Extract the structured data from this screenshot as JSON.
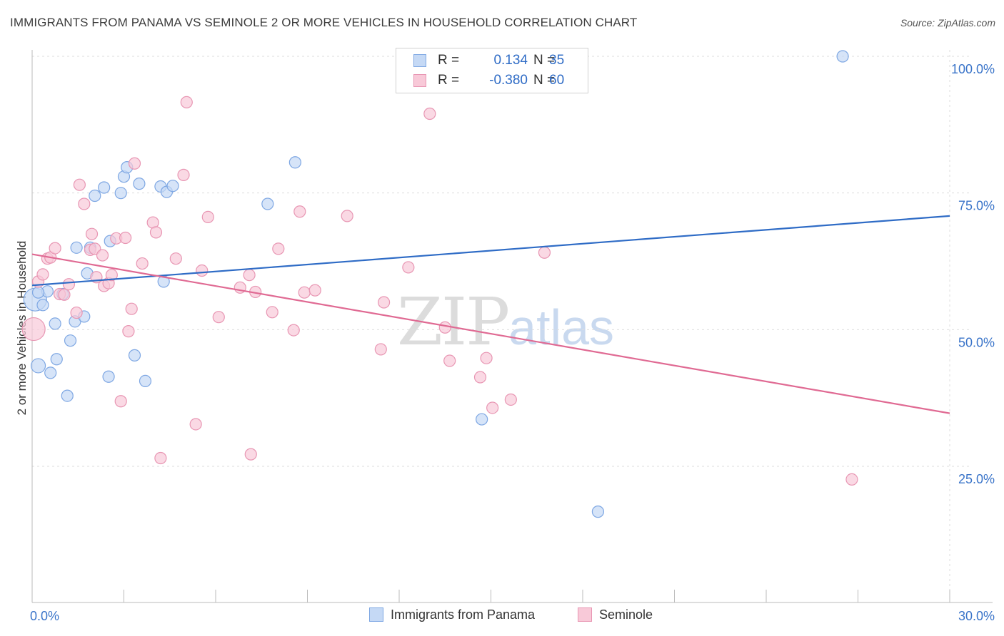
{
  "header": {
    "title": "IMMIGRANTS FROM PANAMA VS SEMINOLE 2 OR MORE VEHICLES IN HOUSEHOLD CORRELATION CHART",
    "source": "Source: ZipAtlas.com"
  },
  "watermark": {
    "zip": "ZIP",
    "atlas": "atlas"
  },
  "legend": {
    "rows": [
      {
        "r_label": "R =",
        "r_value": "0.134",
        "n_label": "N =",
        "n_value": "35",
        "fill": "#c5d9f5",
        "stroke": "#7ea7e3"
      },
      {
        "r_label": "R =",
        "r_value": "-0.380",
        "n_label": "N =",
        "n_value": "60",
        "fill": "#f8c9d8",
        "stroke": "#e896b3"
      }
    ]
  },
  "bottom_legend": {
    "series1": "Immigrants from Panama",
    "series2": "Seminole"
  },
  "chart_data": {
    "type": "scatter",
    "title": "IMMIGRANTS FROM PANAMA VS SEMINOLE 2 OR MORE VEHICLES IN HOUSEHOLD CORRELATION CHART",
    "xlabel": "",
    "ylabel": "2 or more Vehicles in Household",
    "xlim": [
      0,
      30
    ],
    "ylim": [
      0,
      102
    ],
    "x_tick_labels": [
      "0.0%",
      "30.0%"
    ],
    "y_ticks": [
      25,
      50,
      75,
      100
    ],
    "y_tick_labels": [
      "25.0%",
      "50.0%",
      "75.0%",
      "100.0%"
    ],
    "grid": true,
    "colors": {
      "blue": "#2f6cc6",
      "pink": "#e06a93",
      "axis_text": "#3a74c9"
    },
    "series": [
      {
        "name": "Immigrants from Panama",
        "color": "#7ea7e3",
        "fill": "#c5d9f5",
        "trend": {
          "x": [
            0,
            30
          ],
          "y": [
            58.1,
            70.8
          ]
        },
        "points": [
          [
            0.1,
            55.5
          ],
          [
            0.2,
            43.4
          ],
          [
            0.35,
            54.5
          ],
          [
            0.5,
            57.0
          ],
          [
            0.6,
            42.1
          ],
          [
            0.75,
            51.1
          ],
          [
            0.8,
            44.6
          ],
          [
            1.0,
            56.5
          ],
          [
            1.15,
            37.9
          ],
          [
            1.25,
            48.0
          ],
          [
            1.4,
            51.5
          ],
          [
            1.45,
            65.0
          ],
          [
            1.7,
            52.4
          ],
          [
            1.8,
            60.3
          ],
          [
            1.9,
            65.0
          ],
          [
            2.05,
            74.5
          ],
          [
            2.35,
            76.0
          ],
          [
            2.5,
            41.4
          ],
          [
            2.55,
            66.2
          ],
          [
            2.9,
            75.0
          ],
          [
            3.0,
            78.0
          ],
          [
            3.1,
            79.7
          ],
          [
            3.35,
            45.3
          ],
          [
            3.5,
            76.7
          ],
          [
            3.7,
            40.6
          ],
          [
            4.2,
            76.2
          ],
          [
            4.3,
            58.8
          ],
          [
            4.4,
            75.2
          ],
          [
            4.6,
            76.3
          ],
          [
            7.7,
            73.0
          ],
          [
            8.6,
            80.6
          ],
          [
            14.7,
            33.6
          ],
          [
            18.5,
            16.7
          ],
          [
            26.5,
            100.0
          ],
          [
            0.2,
            56.8
          ]
        ],
        "sizes": [
          16,
          10,
          8,
          8,
          8,
          8,
          8,
          8,
          8,
          8,
          8,
          8,
          8,
          8,
          8,
          8,
          8,
          8,
          8,
          8,
          8,
          8,
          8,
          8,
          8,
          8,
          8,
          8,
          8,
          8,
          8,
          8,
          8,
          8,
          8
        ]
      },
      {
        "name": "Seminole",
        "color": "#e896b3",
        "fill": "#f8c9d8",
        "trend": {
          "x": [
            0,
            30
          ],
          "y": [
            63.8,
            34.7
          ]
        },
        "points": [
          [
            0.05,
            50.1
          ],
          [
            0.2,
            58.8
          ],
          [
            0.35,
            60.1
          ],
          [
            0.5,
            63.0
          ],
          [
            0.6,
            63.2
          ],
          [
            0.75,
            64.9
          ],
          [
            0.9,
            56.5
          ],
          [
            1.05,
            56.4
          ],
          [
            1.2,
            58.3
          ],
          [
            1.45,
            53.1
          ],
          [
            1.55,
            76.5
          ],
          [
            1.7,
            73.0
          ],
          [
            1.9,
            64.6
          ],
          [
            1.95,
            67.5
          ],
          [
            2.05,
            64.8
          ],
          [
            2.1,
            59.6
          ],
          [
            2.3,
            63.6
          ],
          [
            2.35,
            58.0
          ],
          [
            2.5,
            58.5
          ],
          [
            2.6,
            60.0
          ],
          [
            2.75,
            66.7
          ],
          [
            2.9,
            36.9
          ],
          [
            3.05,
            66.8
          ],
          [
            3.15,
            49.7
          ],
          [
            3.25,
            53.8
          ],
          [
            3.35,
            80.4
          ],
          [
            3.6,
            62.1
          ],
          [
            3.95,
            69.6
          ],
          [
            4.05,
            67.8
          ],
          [
            4.2,
            26.5
          ],
          [
            4.7,
            63.0
          ],
          [
            4.95,
            78.3
          ],
          [
            5.05,
            91.6
          ],
          [
            5.35,
            32.7
          ],
          [
            5.55,
            60.8
          ],
          [
            5.75,
            70.6
          ],
          [
            6.1,
            52.3
          ],
          [
            6.8,
            57.7
          ],
          [
            7.1,
            60.0
          ],
          [
            7.15,
            27.2
          ],
          [
            7.3,
            56.9
          ],
          [
            7.85,
            53.2
          ],
          [
            8.05,
            64.8
          ],
          [
            8.55,
            49.9
          ],
          [
            8.75,
            71.6
          ],
          [
            8.9,
            56.8
          ],
          [
            9.25,
            57.2
          ],
          [
            10.3,
            70.8
          ],
          [
            11.4,
            46.4
          ],
          [
            11.5,
            55.0
          ],
          [
            12.3,
            61.4
          ],
          [
            13.0,
            89.5
          ],
          [
            13.5,
            50.4
          ],
          [
            13.65,
            44.3
          ],
          [
            14.65,
            41.3
          ],
          [
            14.85,
            44.8
          ],
          [
            15.05,
            35.7
          ],
          [
            15.65,
            37.2
          ],
          [
            16.75,
            64.1
          ],
          [
            26.8,
            22.6
          ]
        ],
        "sizes": [
          16,
          8,
          8,
          8,
          8,
          8,
          8,
          8,
          8,
          8,
          8,
          8,
          8,
          8,
          8,
          8,
          8,
          8,
          8,
          8,
          8,
          8,
          8,
          8,
          8,
          8,
          8,
          8,
          8,
          8,
          8,
          8,
          8,
          8,
          8,
          8,
          8,
          8,
          8,
          8,
          8,
          8,
          8,
          8,
          8,
          8,
          8,
          8,
          8,
          8,
          8,
          8,
          8,
          8,
          8,
          8,
          8,
          8,
          8,
          8
        ]
      }
    ]
  }
}
